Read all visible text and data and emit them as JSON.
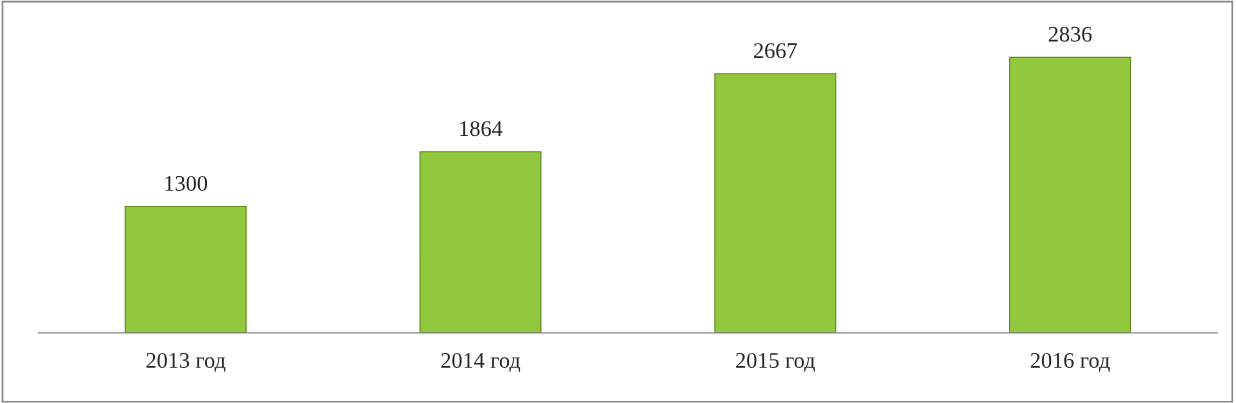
{
  "chart_data": {
    "type": "bar",
    "categories": [
      "2013 год",
      "2014 год",
      "2015 год",
      "2016 год"
    ],
    "values": [
      1300,
      1864,
      2667,
      2836
    ],
    "color": "#92c83e",
    "data_labels": true,
    "grid": false,
    "legend": false
  }
}
